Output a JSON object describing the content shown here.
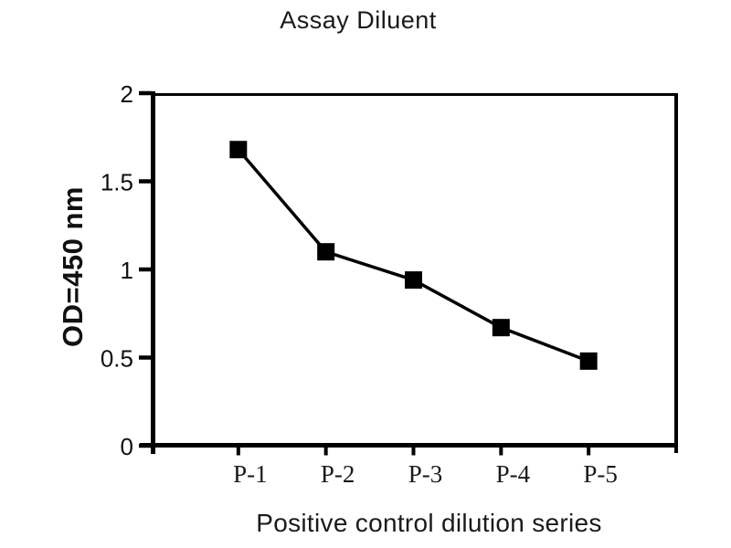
{
  "chart_data": {
    "type": "line",
    "title": "Assay Diluent",
    "xlabel": "Positive control dilution series",
    "ylabel": "OD=450 nm",
    "categories": [
      "P-1",
      "P-2",
      "P-3",
      "P-4",
      "P-5"
    ],
    "values": [
      1.68,
      1.1,
      0.94,
      0.67,
      0.48
    ],
    "ylim": [
      0,
      2
    ],
    "yticks": [
      0,
      0.5,
      1,
      1.5,
      2
    ],
    "marker": "square",
    "line_color": "#000000",
    "marker_color": "#000000",
    "axis_color": "#000000",
    "background_color": "#ffffff",
    "grid": false,
    "legend": "none"
  }
}
